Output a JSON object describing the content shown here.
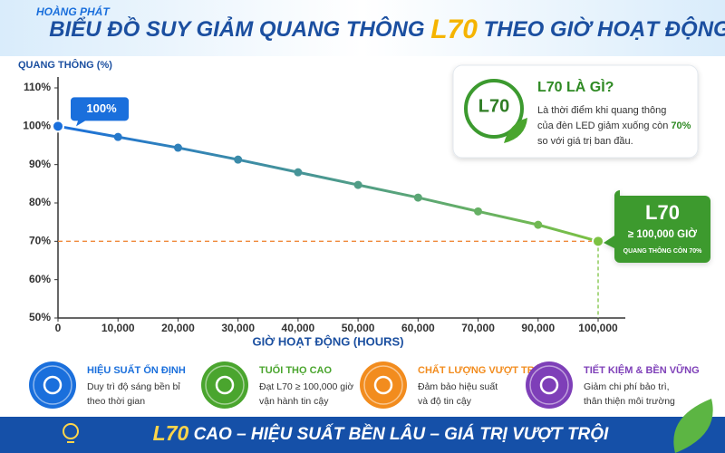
{
  "logo": "HOÀNG PHÁT",
  "header": {
    "title_before": "BIỂU ĐỒ SUY GIẢM QUANG THÔNG",
    "title_highlight": "L70",
    "title_after": "THEO GIỜ HOẠT ĐỘNG"
  },
  "chart_data": {
    "type": "line",
    "y_label": "QUANG THÔNG (%)",
    "x_label": "GIỜ HOẠT ĐỘNG (HOURS)",
    "categories": [
      "0",
      "10,000",
      "20,000",
      "30,000",
      "40,000",
      "50,000",
      "60,000",
      "70,000",
      "90,000",
      "100,000"
    ],
    "values": [
      100,
      97.2,
      94.4,
      91.3,
      88,
      84.7,
      81.4,
      77.8,
      74.3,
      70
    ],
    "colors": [
      "#1a6fdc",
      "#7cc242"
    ],
    "ylim": [
      50,
      110
    ],
    "yticks": [
      {
        "value": 50,
        "label": "50%"
      },
      {
        "value": 60,
        "label": "60%"
      },
      {
        "value": 70,
        "label": "70%"
      },
      {
        "value": 80,
        "label": "80%"
      },
      {
        "value": 90,
        "label": "90%"
      },
      {
        "value": 100,
        "label": "100%"
      },
      {
        "value": 110,
        "label": "110%"
      }
    ],
    "start_label": "100%",
    "reference": {
      "value": 70,
      "color": "#f08a3c"
    },
    "end_callout": {
      "title": "L70",
      "line1": "≥ 100,000 GIỜ",
      "line2": "QUANG THÔNG CÒN 70%"
    }
  },
  "info_box": {
    "badge": "L70",
    "title": "L70 LÀ GÌ?",
    "text_1": "Là thời điểm khi quang thông",
    "text_2": "của đèn LED giảm xuống còn ",
    "highlight": "70%",
    "text_3": "so với giá trị ban đầu."
  },
  "features": [
    {
      "title": "HIỆU SUẤT ỔN ĐỊNH",
      "line1": "Duy trì độ sáng bền bỉ",
      "line2": "theo thời gian",
      "color": "#1a6fdc"
    },
    {
      "title": "TUỔI THỌ CAO",
      "line1": "Đạt L70 ≥ 100,000 giờ",
      "line2": "vận hành tin cậy",
      "color": "#4aa52e"
    },
    {
      "title": "CHẤT LƯỢNG VƯỢT TRỘI",
      "line1": "Đảm bảo hiệu suất",
      "line2": "và độ tin cậy",
      "color": "#f28c1e"
    },
    {
      "title": "TIẾT KIỆM & BỀN VỮNG",
      "line1": "Giảm chi phí bảo trì,",
      "line2": "thân thiện môi trường",
      "color": "#7e3fb8"
    }
  ],
  "footer": {
    "highlight": "L70",
    "text": "CAO – HIỆU SUẤT BỀN LÂU – GIÁ TRỊ VƯỢT TRỘI"
  }
}
